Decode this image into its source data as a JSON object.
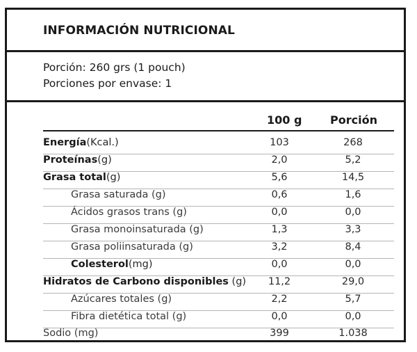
{
  "title": "INFORMACIÓN NUTRICIONAL",
  "serving": {
    "portion": "Porción: 260 grs (1 pouch)",
    "per_package": "Porciones por envase: 1"
  },
  "columns": {
    "per100": "100 g",
    "portion": "Porción"
  },
  "rows": [
    {
      "name": "Energía",
      "unit": "(Kcal.)",
      "v100": "103",
      "vportion": "268"
    },
    {
      "name": "Proteínas",
      "unit": "(g)",
      "v100": "2,0",
      "vportion": "5,2"
    },
    {
      "name": "Grasa total",
      "unit": "(g)",
      "v100": "5,6",
      "vportion": "14,5"
    },
    {
      "name": "Grasa saturada (g)",
      "v100": "0,6",
      "vportion": "1,6"
    },
    {
      "name": "Ácidos grasos trans (g)",
      "v100": "0,0",
      "vportion": "0,0"
    },
    {
      "name": "Grasa monoinsaturada (g)",
      "v100": "1,3",
      "vportion": "3,3"
    },
    {
      "name": "Grasa poliinsaturada (g)",
      "v100": "3,2",
      "vportion": "8,4"
    },
    {
      "name": "Colesterol",
      "unit": "(mg)",
      "v100": "0,0",
      "vportion": "0,0"
    },
    {
      "name": "Hidratos de Carbono disponibles",
      "unit": "(g)",
      "v100": "11,2",
      "vportion": "29,0"
    },
    {
      "name": "Azúcares totales (g)",
      "v100": "2,2",
      "vportion": "5,7"
    },
    {
      "name": "Fibra dietética total (g)",
      "v100": "0,0",
      "vportion": "0,0"
    },
    {
      "name": "Sodio (mg)",
      "v100": "399",
      "vportion": "1.038"
    }
  ]
}
